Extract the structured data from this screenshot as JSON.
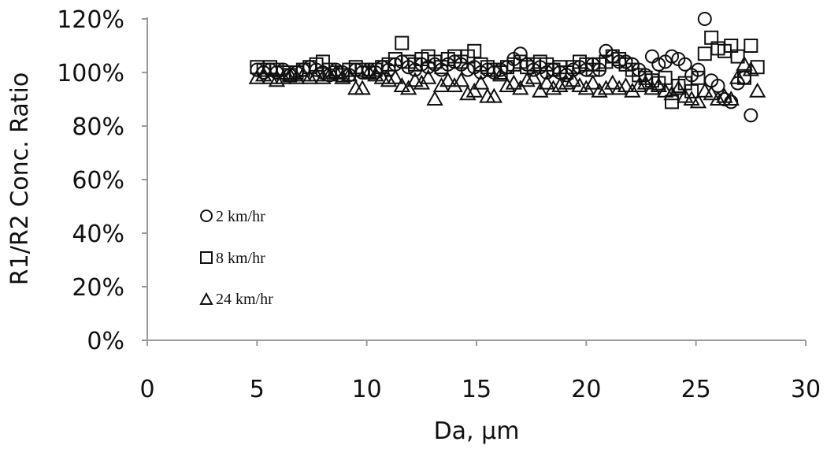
{
  "chart_data": {
    "type": "scatter",
    "xlabel": "Da, µm",
    "ylabel": "R1/R2 Conc. Ratio",
    "xlim": [
      0,
      30
    ],
    "ylim": [
      0,
      120
    ],
    "x_ticks": [
      "0",
      "5",
      "10",
      "15",
      "20",
      "25",
      "30"
    ],
    "y_ticks": [
      "0%",
      "20%",
      "40%",
      "60%",
      "80%",
      "100%",
      "120%"
    ],
    "grid": false,
    "legend_position": "left-center",
    "series": [
      {
        "name": "2 km/hr",
        "marker": "circle",
        "points": [
          [
            5.0,
            101
          ],
          [
            5.3,
            100
          ],
          [
            5.6,
            101
          ],
          [
            5.9,
            100
          ],
          [
            6.2,
            101
          ],
          [
            6.5,
            99
          ],
          [
            6.8,
            100
          ],
          [
            7.1,
            101
          ],
          [
            7.4,
            102
          ],
          [
            7.7,
            101
          ],
          [
            8.0,
            100
          ],
          [
            8.3,
            99
          ],
          [
            8.6,
            101
          ],
          [
            8.9,
            100
          ],
          [
            9.2,
            99
          ],
          [
            9.5,
            101
          ],
          [
            9.8,
            100
          ],
          [
            10.1,
            101
          ],
          [
            10.4,
            100
          ],
          [
            10.7,
            102
          ],
          [
            11.0,
            101
          ],
          [
            11.3,
            103
          ],
          [
            11.6,
            104
          ],
          [
            11.9,
            102
          ],
          [
            12.2,
            101
          ],
          [
            12.5,
            103
          ],
          [
            12.8,
            102
          ],
          [
            13.1,
            103
          ],
          [
            13.4,
            101
          ],
          [
            13.7,
            103
          ],
          [
            14.0,
            104
          ],
          [
            14.3,
            103
          ],
          [
            14.6,
            101
          ],
          [
            14.9,
            102
          ],
          [
            15.2,
            100
          ],
          [
            15.5,
            101
          ],
          [
            15.8,
            100
          ],
          [
            16.1,
            101
          ],
          [
            16.4,
            102
          ],
          [
            16.7,
            105
          ],
          [
            17.0,
            107
          ],
          [
            17.3,
            103
          ],
          [
            17.6,
            101
          ],
          [
            17.9,
            102
          ],
          [
            18.2,
            100
          ],
          [
            18.5,
            101
          ],
          [
            18.8,
            100
          ],
          [
            19.1,
            99
          ],
          [
            19.4,
            101
          ],
          [
            19.7,
            102
          ],
          [
            20.0,
            101
          ],
          [
            20.3,
            103
          ],
          [
            20.6,
            101
          ],
          [
            20.9,
            108
          ],
          [
            21.2,
            106
          ],
          [
            21.5,
            104
          ],
          [
            21.8,
            104
          ],
          [
            22.1,
            103
          ],
          [
            22.4,
            101
          ],
          [
            22.7,
            99
          ],
          [
            23.0,
            106
          ],
          [
            23.3,
            103
          ],
          [
            23.6,
            104
          ],
          [
            23.9,
            106
          ],
          [
            24.2,
            105
          ],
          [
            24.5,
            103
          ],
          [
            24.8,
            99
          ],
          [
            25.1,
            101
          ],
          [
            25.4,
            120
          ],
          [
            25.7,
            97
          ],
          [
            26.0,
            95
          ],
          [
            26.3,
            90
          ],
          [
            26.6,
            89
          ],
          [
            26.9,
            96
          ],
          [
            27.2,
            98
          ],
          [
            27.5,
            84
          ]
        ]
      },
      {
        "name": "8 km/hr",
        "marker": "square",
        "points": [
          [
            5.0,
            102
          ],
          [
            5.3,
            101
          ],
          [
            5.6,
            102
          ],
          [
            5.9,
            101
          ],
          [
            6.2,
            100
          ],
          [
            6.5,
            99
          ],
          [
            6.8,
            100
          ],
          [
            7.1,
            101
          ],
          [
            7.4,
            102
          ],
          [
            7.7,
            103
          ],
          [
            8.0,
            104
          ],
          [
            8.3,
            101
          ],
          [
            8.6,
            100
          ],
          [
            8.9,
            99
          ],
          [
            9.2,
            101
          ],
          [
            9.5,
            102
          ],
          [
            9.8,
            101
          ],
          [
            10.1,
            100
          ],
          [
            10.4,
            101
          ],
          [
            10.7,
            102
          ],
          [
            11.0,
            103
          ],
          [
            11.3,
            105
          ],
          [
            11.6,
            111
          ],
          [
            11.9,
            104
          ],
          [
            12.2,
            103
          ],
          [
            12.5,
            105
          ],
          [
            12.8,
            106
          ],
          [
            13.1,
            104
          ],
          [
            13.4,
            102
          ],
          [
            13.7,
            105
          ],
          [
            14.0,
            106
          ],
          [
            14.3,
            104
          ],
          [
            14.6,
            106
          ],
          [
            14.9,
            108
          ],
          [
            15.2,
            103
          ],
          [
            15.5,
            102
          ],
          [
            15.8,
            101
          ],
          [
            16.1,
            100
          ],
          [
            16.4,
            102
          ],
          [
            16.7,
            103
          ],
          [
            17.0,
            104
          ],
          [
            17.3,
            102
          ],
          [
            17.6,
            103
          ],
          [
            17.9,
            104
          ],
          [
            18.2,
            103
          ],
          [
            18.5,
            101
          ],
          [
            18.8,
            102
          ],
          [
            19.1,
            100
          ],
          [
            19.4,
            102
          ],
          [
            19.7,
            104
          ],
          [
            20.0,
            103
          ],
          [
            20.3,
            101
          ],
          [
            20.6,
            103
          ],
          [
            20.9,
            104
          ],
          [
            21.2,
            106
          ],
          [
            21.5,
            105
          ],
          [
            21.8,
            103
          ],
          [
            22.1,
            101
          ],
          [
            22.4,
            99
          ],
          [
            22.7,
            98
          ],
          [
            23.0,
            97
          ],
          [
            23.3,
            96
          ],
          [
            23.6,
            98
          ],
          [
            23.9,
            89
          ],
          [
            24.2,
            95
          ],
          [
            24.5,
            96
          ],
          [
            24.8,
            93
          ],
          [
            25.1,
            98
          ],
          [
            25.4,
            107
          ],
          [
            25.7,
            113
          ],
          [
            26.0,
            109
          ],
          [
            26.3,
            108
          ],
          [
            26.6,
            110
          ],
          [
            26.9,
            106
          ],
          [
            27.2,
            98
          ],
          [
            27.5,
            110
          ],
          [
            27.8,
            102
          ]
        ]
      },
      {
        "name": "24 km/hr",
        "marker": "triangle",
        "points": [
          [
            5.0,
            98
          ],
          [
            5.3,
            99
          ],
          [
            5.6,
            98
          ],
          [
            5.9,
            97
          ],
          [
            6.2,
            98
          ],
          [
            6.5,
            99
          ],
          [
            6.8,
            98
          ],
          [
            7.1,
            99
          ],
          [
            7.4,
            98
          ],
          [
            7.7,
            99
          ],
          [
            8.0,
            98
          ],
          [
            8.3,
            99
          ],
          [
            8.6,
            100
          ],
          [
            8.9,
            98
          ],
          [
            9.2,
            99
          ],
          [
            9.5,
            94
          ],
          [
            9.8,
            94
          ],
          [
            10.1,
            100
          ],
          [
            10.4,
            99
          ],
          [
            10.7,
            98
          ],
          [
            11.0,
            97
          ],
          [
            11.3,
            98
          ],
          [
            11.6,
            95
          ],
          [
            11.9,
            94
          ],
          [
            12.2,
            97
          ],
          [
            12.5,
            96
          ],
          [
            12.8,
            98
          ],
          [
            13.1,
            90
          ],
          [
            13.4,
            95
          ],
          [
            13.7,
            97
          ],
          [
            14.0,
            95
          ],
          [
            14.3,
            97
          ],
          [
            14.6,
            92
          ],
          [
            14.9,
            93
          ],
          [
            15.2,
            96
          ],
          [
            15.5,
            91
          ],
          [
            15.8,
            91
          ],
          [
            16.1,
            99
          ],
          [
            16.4,
            95
          ],
          [
            16.7,
            96
          ],
          [
            17.0,
            94
          ],
          [
            17.3,
            97
          ],
          [
            17.6,
            98
          ],
          [
            17.9,
            93
          ],
          [
            18.2,
            96
          ],
          [
            18.5,
            94
          ],
          [
            18.8,
            95
          ],
          [
            19.1,
            96
          ],
          [
            19.4,
            97
          ],
          [
            19.7,
            95
          ],
          [
            20.0,
            94
          ],
          [
            20.3,
            96
          ],
          [
            20.6,
            93
          ],
          [
            20.9,
            94
          ],
          [
            21.2,
            96
          ],
          [
            21.5,
            94
          ],
          [
            21.8,
            95
          ],
          [
            22.1,
            93
          ],
          [
            22.4,
            95
          ],
          [
            22.7,
            96
          ],
          [
            23.0,
            94
          ],
          [
            23.3,
            95
          ],
          [
            23.6,
            93
          ],
          [
            23.9,
            92
          ],
          [
            24.2,
            94
          ],
          [
            24.5,
            91
          ],
          [
            24.8,
            90
          ],
          [
            25.1,
            89
          ],
          [
            25.4,
            93
          ],
          [
            25.7,
            92
          ],
          [
            26.0,
            90
          ],
          [
            26.3,
            91
          ],
          [
            26.6,
            90
          ],
          [
            26.9,
            98
          ],
          [
            27.2,
            103
          ],
          [
            27.5,
            101
          ],
          [
            27.8,
            93
          ]
        ]
      }
    ]
  }
}
